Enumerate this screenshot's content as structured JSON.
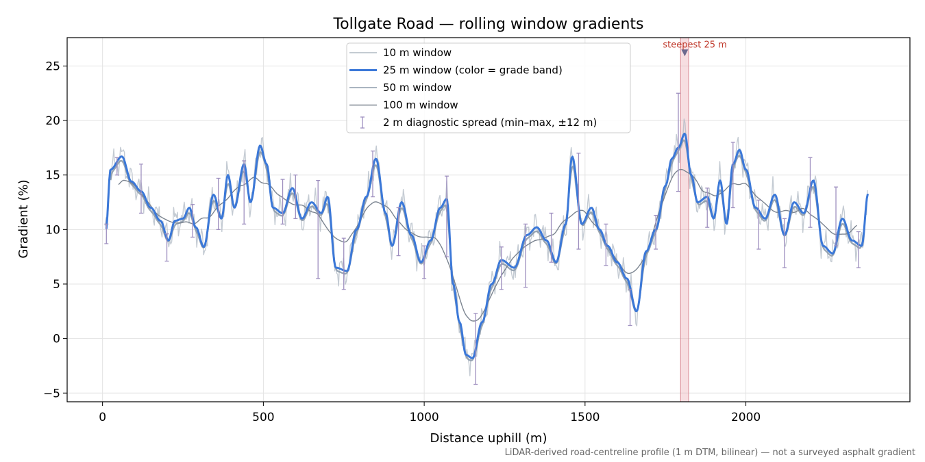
{
  "chart_data": {
    "type": "line",
    "title": "Tollgate Road — rolling window gradients",
    "xlabel": "Distance uphill (m)",
    "ylabel": "Gradient (%)",
    "xlim": [
      -110,
      2510
    ],
    "ylim": [
      -5.8,
      27.6
    ],
    "xticks": [
      0,
      500,
      1000,
      1500,
      2000
    ],
    "yticks": [
      -5,
      0,
      5,
      10,
      15,
      20,
      25
    ],
    "grid": true,
    "legend_position": "top-center",
    "footnote": "LiDAR-derived road-centreline profile (1 m DTM, bilinear) — not a surveyed asphalt gradient",
    "annotation": {
      "label": "steepest 25 m",
      "x": 1810,
      "y": 26.2,
      "band": [
        1797,
        1822
      ]
    },
    "profile_anchors": {
      "x": [
        10,
        25,
        60,
        90,
        120,
        150,
        180,
        205,
        225,
        250,
        270,
        290,
        315,
        345,
        370,
        390,
        410,
        440,
        460,
        490,
        510,
        530,
        560,
        590,
        620,
        650,
        680,
        700,
        725,
        760,
        790,
        820,
        850,
        880,
        900,
        930,
        960,
        990,
        1020,
        1050,
        1070,
        1090,
        1110,
        1130,
        1150,
        1180,
        1210,
        1240,
        1280,
        1320,
        1350,
        1380,
        1410,
        1440,
        1460,
        1490,
        1520,
        1545,
        1570,
        1600,
        1630,
        1660,
        1690,
        1720,
        1750,
        1770,
        1790,
        1810,
        1830,
        1850,
        1880,
        1900,
        1920,
        1940,
        1960,
        1980,
        2000,
        2030,
        2060,
        2090,
        2120,
        2150,
        2180,
        2210,
        2240,
        2270,
        2300,
        2330,
        2360,
        2380
      ],
      "y": [
        9.8,
        15.5,
        16.7,
        14.4,
        13.5,
        12.0,
        10.8,
        9.0,
        10.8,
        11.0,
        12.0,
        10.2,
        8.4,
        13.2,
        11.0,
        15.0,
        12.0,
        16.0,
        12.5,
        17.7,
        16.0,
        12.0,
        11.5,
        13.8,
        11.0,
        12.5,
        11.5,
        13.0,
        6.5,
        6.2,
        10.0,
        13.0,
        16.5,
        11.5,
        8.5,
        12.5,
        9.5,
        7.0,
        9.0,
        12.0,
        12.8,
        5.0,
        1.5,
        -1.5,
        -1.8,
        1.5,
        5.0,
        7.2,
        6.5,
        9.5,
        10.2,
        9.0,
        7.0,
        10.5,
        16.7,
        10.5,
        12.0,
        10.0,
        8.5,
        7.0,
        5.5,
        2.5,
        8.0,
        10.0,
        14.0,
        16.5,
        17.5,
        18.8,
        15.0,
        12.5,
        13.0,
        11.0,
        14.5,
        10.5,
        16.0,
        17.3,
        15.5,
        12.0,
        11.0,
        13.2,
        9.5,
        12.5,
        11.5,
        14.5,
        8.5,
        7.8,
        11.0,
        9.0,
        8.5,
        13.3
      ]
    },
    "series": [
      {
        "name": "10 m window",
        "color": "#b0bac4",
        "x_range": [
          8,
          2380
        ],
        "smoothing": "fine",
        "y_offset": 0.0
      },
      {
        "name": "25 m window (color = grade band)",
        "color": "#3b78d8",
        "x_range": [
          12,
          2380
        ],
        "smoothing": "base",
        "y_offset": 0.0
      },
      {
        "name": "50 m window",
        "color": "#8d9bab",
        "x_range": [
          25,
          2370
        ],
        "smoothing": "medium",
        "y_offset": -0.3
      },
      {
        "name": "100 m window",
        "color": "#7b8490",
        "x_range": [
          50,
          2345
        ],
        "smoothing": "coarse",
        "y_offset": 0.0
      },
      {
        "name": "2 m diagnostic spread (min–max, ±12 m)",
        "color": "#9e8fbf",
        "type": "errorbar"
      }
    ],
    "errorbars": [
      {
        "x": 12,
        "center": 9.5,
        "min": 8.7,
        "max": 10.5
      },
      {
        "x": 45,
        "center": 15.6,
        "min": 15.0,
        "max": 16.6
      },
      {
        "x": 120,
        "center": 13.5,
        "min": 11.5,
        "max": 16.0
      },
      {
        "x": 200,
        "center": 8.6,
        "min": 7.1,
        "max": 9.6
      },
      {
        "x": 280,
        "center": 11.5,
        "min": 9.3,
        "max": 12.3
      },
      {
        "x": 360,
        "center": 12.0,
        "min": 10.0,
        "max": 14.7
      },
      {
        "x": 440,
        "center": 14.0,
        "min": 10.5,
        "max": 16.3
      },
      {
        "x": 560,
        "center": 12.0,
        "min": 10.5,
        "max": 14.6
      },
      {
        "x": 600,
        "center": 12.5,
        "min": 11.0,
        "max": 15.0
      },
      {
        "x": 670,
        "center": 10.0,
        "min": 5.5,
        "max": 14.5
      },
      {
        "x": 750,
        "center": 7.0,
        "min": 4.5,
        "max": 9.2
      },
      {
        "x": 840,
        "center": 15.0,
        "min": 13.0,
        "max": 17.2
      },
      {
        "x": 920,
        "center": 10.0,
        "min": 7.6,
        "max": 12.0
      },
      {
        "x": 1000,
        "center": 7.0,
        "min": 5.5,
        "max": 8.5
      },
      {
        "x": 1070,
        "center": 11.0,
        "min": 7.5,
        "max": 14.9
      },
      {
        "x": 1160,
        "center": -1.0,
        "min": -4.2,
        "max": 2.3
      },
      {
        "x": 1240,
        "center": 7.0,
        "min": 4.5,
        "max": 8.4
      },
      {
        "x": 1315,
        "center": 8.5,
        "min": 4.7,
        "max": 10.5
      },
      {
        "x": 1395,
        "center": 9.5,
        "min": 7.0,
        "max": 11.5
      },
      {
        "x": 1480,
        "center": 12.0,
        "min": 8.2,
        "max": 17.0
      },
      {
        "x": 1565,
        "center": 9.0,
        "min": 6.7,
        "max": 10.5
      },
      {
        "x": 1640,
        "center": 3.5,
        "min": 1.2,
        "max": 4.5
      },
      {
        "x": 1720,
        "center": 10.0,
        "min": 8.2,
        "max": 11.3
      },
      {
        "x": 1790,
        "center": 17.0,
        "min": 13.5,
        "max": 22.5
      },
      {
        "x": 1880,
        "center": 12.0,
        "min": 10.2,
        "max": 13.8
      },
      {
        "x": 1960,
        "center": 15.0,
        "min": 12.0,
        "max": 18.0
      },
      {
        "x": 2040,
        "center": 10.5,
        "min": 8.2,
        "max": 12.7
      },
      {
        "x": 2120,
        "center": 9.0,
        "min": 6.5,
        "max": 11.0
      },
      {
        "x": 2200,
        "center": 13.0,
        "min": 10.2,
        "max": 16.6
      },
      {
        "x": 2280,
        "center": 11.0,
        "min": 8.5,
        "max": 13.9
      },
      {
        "x": 2350,
        "center": 8.0,
        "min": 6.5,
        "max": 9.8
      }
    ]
  }
}
